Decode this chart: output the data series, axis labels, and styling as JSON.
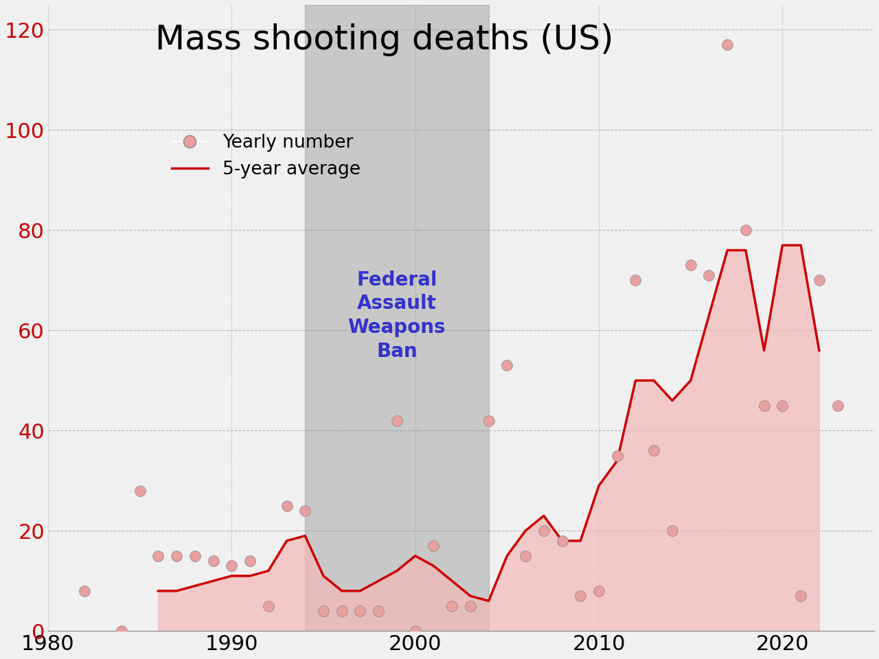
{
  "title": "Mass shooting deaths (US)",
  "years_scatter": [
    1982,
    1984,
    1985,
    1986,
    1987,
    1988,
    1989,
    1990,
    1991,
    1992,
    1993,
    1994,
    1995,
    1996,
    1997,
    1998,
    1999,
    2000,
    2001,
    2002,
    2003,
    2004,
    2005,
    2006,
    2007,
    2008,
    2009,
    2010,
    2011,
    2012,
    2013,
    2014,
    2015,
    2016,
    2017,
    2018,
    2019,
    2020,
    2021,
    2022,
    2023
  ],
  "deaths_scatter": [
    8,
    0,
    28,
    15,
    15,
    15,
    14,
    13,
    14,
    5,
    25,
    24,
    4,
    4,
    4,
    4,
    42,
    0,
    17,
    5,
    5,
    42,
    53,
    15,
    20,
    18,
    7,
    8,
    35,
    70,
    36,
    20,
    73,
    71,
    117,
    80,
    45,
    45,
    7,
    70,
    45
  ],
  "avg_years": [
    1986,
    1987,
    1988,
    1989,
    1990,
    1991,
    1992,
    1993,
    1994,
    1995,
    1996,
    1997,
    1998,
    1999,
    2000,
    2001,
    2002,
    2003,
    2004,
    2005,
    2006,
    2007,
    2008,
    2009,
    2010,
    2011,
    2012,
    2013,
    2014,
    2015,
    2016,
    2017,
    2018,
    2019,
    2020,
    2021,
    2022
  ],
  "avg_deaths": [
    8,
    8,
    9,
    10,
    11,
    11,
    12,
    18,
    19,
    11,
    8,
    8,
    10,
    12,
    15,
    13,
    10,
    7,
    6,
    15,
    20,
    23,
    18,
    18,
    29,
    34,
    50,
    50,
    46,
    50,
    63,
    76,
    76,
    56,
    77,
    77,
    56
  ],
  "ban_start": 1994,
  "ban_end": 2004,
  "xlim": [
    1980,
    2025
  ],
  "ylim": [
    0,
    125
  ],
  "yticks": [
    0,
    20,
    40,
    60,
    80,
    100,
    120
  ],
  "xticks": [
    1980,
    1990,
    2000,
    2010,
    2020
  ],
  "scatter_color": "#e8a0a0",
  "line_color": "#cc0000",
  "fill_color": "#f5b8b8",
  "ban_fill_color": "#cccccc",
  "ban_text_color": "#3333cc",
  "ban_text": "Federal\nAssault\nWeapons\nBan",
  "legend_scatter_label": "Yearly number",
  "legend_line_label": "5-year average",
  "title_fontsize": 36,
  "axis_tick_color": "#cc0000",
  "bg_color": "#f0f0f0"
}
